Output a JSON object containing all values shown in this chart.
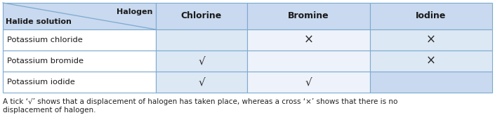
{
  "col_header_top": "Halogen",
  "col_header_bottom": "Halide solution",
  "columns": [
    "Chlorine",
    "Bromine",
    "Iodine"
  ],
  "rows": [
    "Potassium chloride",
    "Potassium bromide",
    "Potassium iodide"
  ],
  "cells": [
    [
      "",
      "×",
      "×"
    ],
    [
      "√",
      "",
      "×"
    ],
    [
      "√",
      "√",
      ""
    ]
  ],
  "header_bg": "#c9d9ef",
  "col1_bg": "#dde8f5",
  "col2_bg": "#eef2fa",
  "col3_bg": "#dde8f5",
  "col1_last_bg": "#dde8f5",
  "col3_last_bg": "#c9d9ef",
  "row_label_bg": "#ffffff",
  "border_color": "#7baad0",
  "text_color": "#1a1a1a",
  "footnote": "A tick ‘√’ shows that a displacement of halogen has taken place, whereas a cross ‘×’ shows that there is no\ndisplacement of halogen.",
  "fig_width": 7.05,
  "fig_height": 1.81
}
